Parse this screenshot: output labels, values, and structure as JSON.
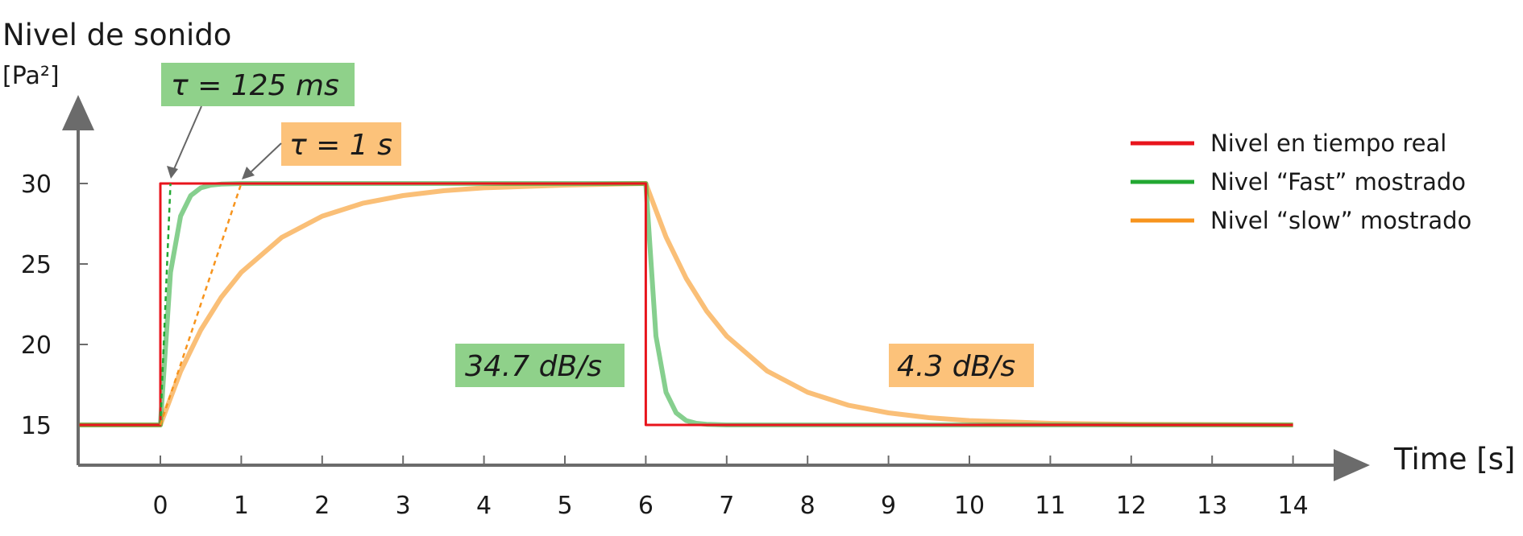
{
  "chart_data": {
    "type": "line",
    "title": "",
    "ylabel": "Nivel de sonido",
    "yunit": "[Pa²]",
    "xlabel": "Time [s]",
    "xlim": [
      -1,
      14
    ],
    "ylim": [
      15,
      30
    ],
    "x_ticks": [
      "0",
      "1",
      "2",
      "3",
      "4",
      "5",
      "6",
      "7",
      "8",
      "9",
      "10",
      "11",
      "12",
      "13",
      "14"
    ],
    "y_ticks": [
      "15",
      "20",
      "25",
      "30"
    ],
    "grid": false,
    "legend_position": "top-right",
    "series": [
      {
        "name": "Nivel en tiempo real",
        "color": "#e8141c",
        "x": [
          -1,
          0,
          0,
          6,
          6,
          14
        ],
        "y": [
          15,
          15,
          30,
          30,
          15,
          15
        ]
      },
      {
        "name": "Nivel “Fast” mostrado",
        "color": "#22a832",
        "x": [
          -1,
          0,
          0.125,
          0.25,
          0.375,
          0.5,
          0.625,
          0.75,
          1,
          1.5,
          2,
          6,
          6.125,
          6.25,
          6.375,
          6.5,
          6.625,
          6.75,
          7,
          8,
          14
        ],
        "y": [
          15,
          15,
          24.48,
          27.97,
          29.25,
          29.73,
          29.9,
          29.96,
          30,
          30,
          30,
          30,
          20.52,
          17.03,
          15.75,
          15.27,
          15.1,
          15.04,
          15,
          15,
          15
        ]
      },
      {
        "name": "Nivel “slow” mostrado",
        "color": "#f7941d",
        "x": [
          -1,
          0,
          0.25,
          0.5,
          0.75,
          1,
          1.5,
          2,
          2.5,
          3,
          3.5,
          4,
          5,
          6,
          6.25,
          6.5,
          6.75,
          7,
          7.5,
          8,
          8.5,
          9,
          9.5,
          10,
          11,
          12,
          14
        ],
        "y": [
          15,
          15,
          18.32,
          20.9,
          22.91,
          24.48,
          26.65,
          27.97,
          28.77,
          29.25,
          29.55,
          29.73,
          29.9,
          30,
          26.68,
          24.1,
          22.09,
          20.52,
          18.35,
          17.03,
          16.23,
          15.75,
          15.45,
          15.27,
          15.1,
          15.04,
          15
        ]
      }
    ],
    "annotations": [
      {
        "text": "τ = 125 ms",
        "color": "#8fd18a",
        "x": 0.125,
        "y": 30
      },
      {
        "text": "τ = 1 s",
        "color": "#fcc27a",
        "x": 1,
        "y": 30
      },
      {
        "text": "34.7 dB/s",
        "color": "#8fd18a"
      },
      {
        "text": "4.3 dB/s",
        "color": "#fcc27a"
      }
    ]
  }
}
